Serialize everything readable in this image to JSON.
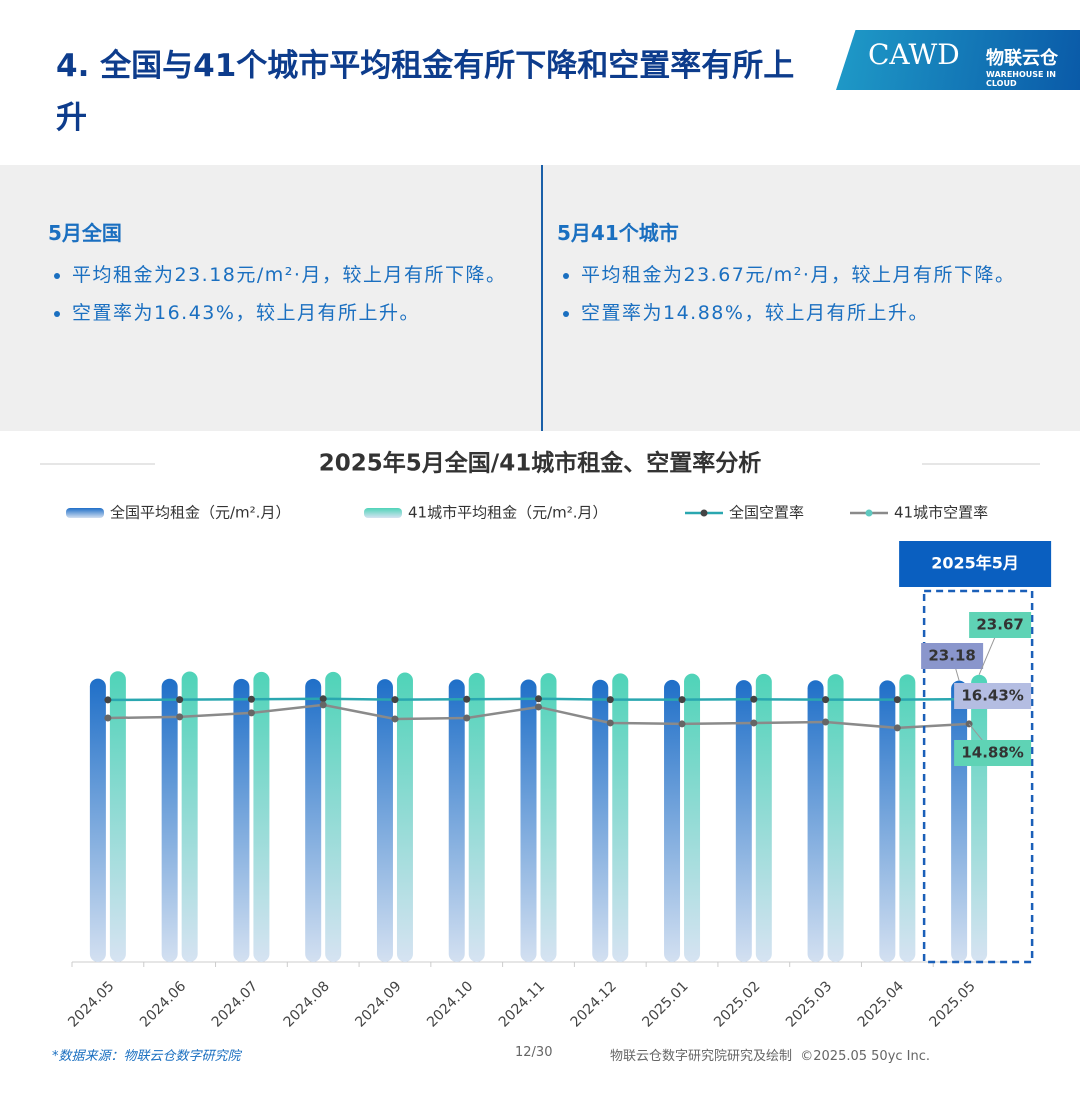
{
  "header": {
    "title": "4. 全国与41个城市平均租金有所下降和空置率有所上升",
    "logo_text": "CAWD",
    "brand": "物联云仓",
    "brand_sub": "WAREHOUSE IN CLOUD"
  },
  "panels": [
    {
      "heading": "5月全国",
      "bullets": [
        "平均租金为23.18元/m²·月，较上月有所下降。",
        "空置率为16.43%，较上月有所上升。"
      ]
    },
    {
      "heading": "5月41个城市",
      "bullets": [
        "平均租金为23.67元/m²·月，较上月有所下降。",
        "空置率为14.88%，较上月有所上升。"
      ]
    }
  ],
  "chart_data": {
    "type": "bar-line",
    "title": "2025年5月全国/41城市租金、空置率分析",
    "categories": [
      "2024.05",
      "2024.06",
      "2024.07",
      "2024.08",
      "2024.09",
      "2024.10",
      "2024.11",
      "2024.12",
      "2025.01",
      "2025.02",
      "2025.03",
      "2025.04",
      "2025.05"
    ],
    "series": [
      {
        "name": "全国平均租金（元/m².月）",
        "kind": "bar",
        "color": "#1f6fc8",
        "values": [
          23.35,
          23.34,
          23.33,
          23.33,
          23.3,
          23.28,
          23.27,
          23.25,
          23.24,
          23.22,
          23.21,
          23.2,
          23.18
        ],
        "value_labels": [
          null,
          null,
          null,
          null,
          null,
          null,
          null,
          null,
          null,
          null,
          null,
          null,
          "23.18"
        ]
      },
      {
        "name": "41城市平均租金（元/m².月）",
        "kind": "bar",
        "color": "#4fd3b8",
        "values": [
          23.95,
          23.93,
          23.9,
          23.9,
          23.85,
          23.82,
          23.8,
          23.78,
          23.76,
          23.74,
          23.72,
          23.7,
          23.67
        ],
        "value_labels": [
          null,
          null,
          null,
          null,
          null,
          null,
          null,
          null,
          null,
          null,
          null,
          null,
          "23.67"
        ]
      },
      {
        "name": "全国空置率",
        "kind": "line",
        "axis": "y2",
        "color": "#2aa7b0",
        "values": [
          16.38,
          16.4,
          16.42,
          16.45,
          16.4,
          16.42,
          16.45,
          16.4,
          16.4,
          16.42,
          16.4,
          16.4,
          16.43
        ],
        "value_labels": [
          null,
          null,
          null,
          null,
          null,
          null,
          null,
          null,
          null,
          null,
          null,
          null,
          "16.43%"
        ]
      },
      {
        "name": "41城市空置率",
        "kind": "line",
        "axis": "y2",
        "color": "#8a8a8a",
        "values": [
          15.25,
          15.32,
          15.57,
          16.07,
          15.19,
          15.25,
          15.94,
          14.94,
          14.88,
          14.94,
          15.0,
          14.63,
          14.88
        ],
        "value_labels": [
          null,
          null,
          null,
          null,
          null,
          null,
          null,
          null,
          null,
          null,
          null,
          null,
          "14.88%"
        ]
      }
    ],
    "ylim": [
      0,
      29
    ],
    "y2lim": [
      0,
      22
    ],
    "highlight_label": "2025年5月"
  },
  "footer": {
    "source": "*数据来源：物联云仓数字研究院",
    "page": "12/30",
    "credit": "物联云仓数字研究院研究及绘制  ©2025.05 50yc Inc."
  }
}
